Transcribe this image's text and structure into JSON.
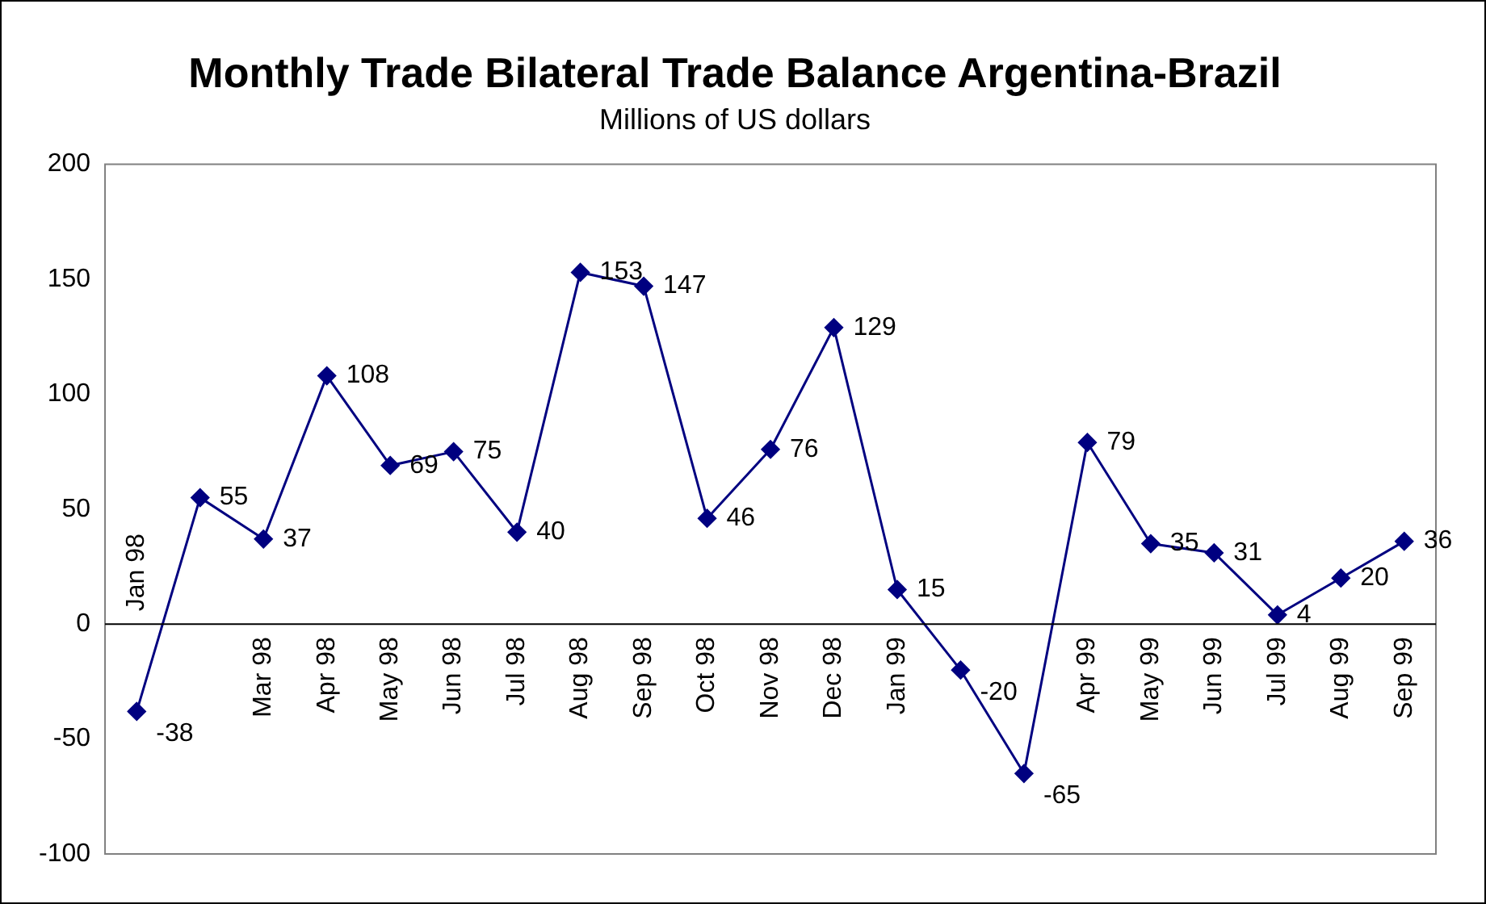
{
  "chart_data": {
    "type": "line",
    "title": "Monthly Trade Bilateral Trade Balance Argentina-Brazil",
    "subtitle": "Millions of US dollars",
    "categories": [
      "Jan 98",
      null,
      "Mar 98",
      "Apr 98",
      "May 98",
      "Jun 98",
      "Jul 98",
      "Aug 98",
      "Sep 98",
      "Oct 98",
      "Nov 98",
      "Dec 98",
      "Jan 99",
      null,
      null,
      "Apr 99",
      "May 99",
      "Jun 99",
      "Jul 99",
      "Aug 99",
      "Sep 99"
    ],
    "series": [
      {
        "color": "#000080",
        "values": [
          -38,
          55,
          37,
          108,
          69,
          75,
          40,
          153,
          147,
          46,
          76,
          129,
          15,
          -20,
          -65,
          79,
          35,
          31,
          4,
          20,
          36
        ]
      }
    ],
    "ylim": [
      -100,
      200
    ],
    "yticks": [
      -100,
      -50,
      0,
      50,
      100,
      150,
      200
    ],
    "grid": false,
    "legend": false,
    "marker": "diamond",
    "line_style": "solid",
    "data_labels": true
  }
}
